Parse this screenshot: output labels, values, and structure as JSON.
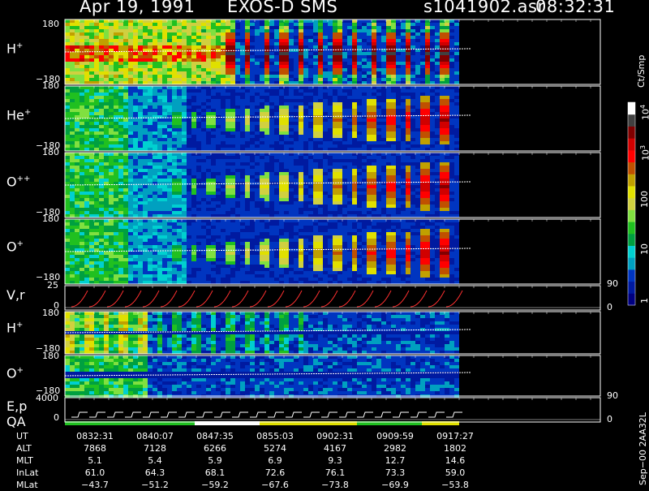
{
  "header": {
    "date": "Apr 19, 1991",
    "instrument": "EXOS-D SMS",
    "file": "s1041902.asr",
    "time": "08:32:31"
  },
  "colorbar": {
    "title": "Ct/Smp",
    "labels": [
      "1",
      "10",
      "100"
    ],
    "label_e3": "10",
    "label_e3_exp": "3",
    "label_e4": "10",
    "label_e4_exp": "4",
    "colors": [
      "#000080",
      "#001aa0",
      "#0035c0",
      "#00a0c0",
      "#00d0d0",
      "#00a040",
      "#20c020",
      "#80e040",
      "#d0d040",
      "#e0e000",
      "#c0a000",
      "#c05000",
      "#ff0000",
      "#d00000",
      "#800000",
      "#404040",
      "#ffffff"
    ]
  },
  "panels": [
    {
      "label": "H",
      "sup": "+",
      "y_top": "180",
      "y_bottom": "−180"
    },
    {
      "label": "He",
      "sup": "+",
      "y_top": "180",
      "y_bottom": "−180"
    },
    {
      "label": "O",
      "sup": "++",
      "y_top": "180",
      "y_bottom": "−180"
    },
    {
      "label": "O",
      "sup": "+",
      "y_top": "180",
      "y_bottom": "−180"
    },
    {
      "label": "V,r",
      "sup": "",
      "y_top": "25",
      "y_bottom": "0",
      "right_top": "90",
      "right_bottom": "0"
    },
    {
      "label": "H",
      "sup": "+",
      "y_top": "180",
      "y_bottom": "−180"
    },
    {
      "label": "O",
      "sup": "+",
      "y_top": "180",
      "y_bottom": "−180"
    },
    {
      "label": "E,p",
      "label2": "QA",
      "y_top": "4000",
      "y_bottom": "0",
      "right_top": "90",
      "right_bottom": "0"
    }
  ],
  "chart_data": {
    "type": "heatmap",
    "title": "Apr 19, 1991   EXOS-D SMS",
    "x_ticks": [
      "0832:31",
      "0840:07",
      "0847:35",
      "0855:03",
      "0902:31",
      "0909:59",
      "0917:27"
    ],
    "ephemeris": {
      "UT": [
        "0832:31",
        "0840:07",
        "0847:35",
        "0855:03",
        "0902:31",
        "0909:59",
        "0917:27"
      ],
      "ALT": [
        "7868",
        "7128",
        "6266",
        "5274",
        "4167",
        "2982",
        "1802"
      ],
      "MLT": [
        "5.1",
        "5.4",
        "5.9",
        "6.9",
        "9.3",
        "12.7",
        "14.6"
      ],
      "InLat": [
        "61.0",
        "64.3",
        "68.1",
        "72.6",
        "76.1",
        "73.3",
        "59.0"
      ],
      "MLat": [
        "−43.7",
        "−51.2",
        "−59.2",
        "−67.6",
        "−73.8",
        "−69.9",
        "−53.8"
      ]
    },
    "colorscale": {
      "label": "Ct/Smp",
      "scale": "log",
      "range": [
        1,
        10000
      ]
    }
  },
  "footer": {
    "side_label": "Sep−00  2AA32L"
  },
  "ephem_rows": [
    {
      "name": "UT",
      "vals": [
        "0832:31",
        "0840:07",
        "0847:35",
        "0855:03",
        "0902:31",
        "0909:59",
        "0917:27"
      ]
    },
    {
      "name": "ALT",
      "vals": [
        "7868",
        "7128",
        "6266",
        "5274",
        "4167",
        "2982",
        "1802"
      ]
    },
    {
      "name": "MLT",
      "vals": [
        "5.1",
        "5.4",
        "5.9",
        "6.9",
        "9.3",
        "12.7",
        "14.6"
      ]
    },
    {
      "name": "InLat",
      "vals": [
        "61.0",
        "64.3",
        "68.1",
        "72.6",
        "76.1",
        "73.3",
        "59.0"
      ]
    },
    {
      "name": "MLat",
      "vals": [
        "−43.7",
        "−51.2",
        "−59.2",
        "−67.6",
        "−73.8",
        "−69.9",
        "−53.8"
      ]
    }
  ]
}
